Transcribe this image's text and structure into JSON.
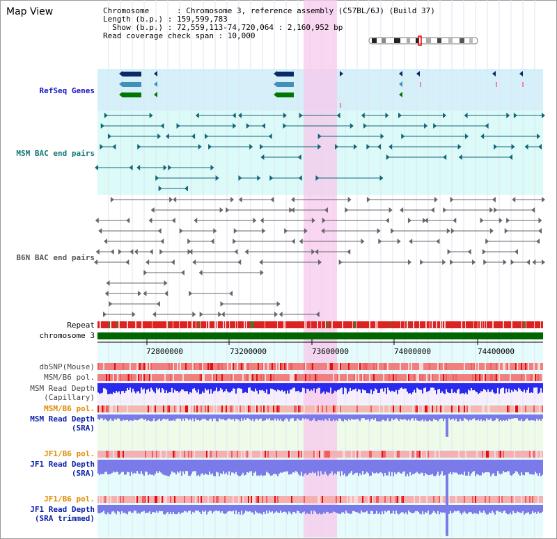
{
  "app": {
    "title": "Map View"
  },
  "info": {
    "chromosome": "Chromosome      : Chromosome 3, reference assembly (C57BL/6J) (Build 37)",
    "length": "Length (b.p.) : 159,599,783",
    "show": "  Show (b.p.) : 72,559,113-74,720,064 : 2,160,952 bp",
    "coverage": "Read coverage check span : 10,000"
  },
  "tracks": {
    "refseq": "RefSeq Genes",
    "msm_bac": "MSM BAC end pairs",
    "b6n_bac": "B6N BAC end pairs",
    "repeat": "Repeat",
    "chromosome": "chromosome 3",
    "dbsnp": "dbSNP(Mouse)",
    "msm_b6_pol_1": "MSM/B6 pol.",
    "msm_depth_cap": "MSM Read Depth\n(Capillary)",
    "msm_b6_pol_2": "MSM/B6 pol.",
    "msm_depth_sra": "MSM Read Depth\n(SRA)",
    "jf1_b6_pol_1": "JF1/B6 pol.",
    "jf1_depth_sra": "JF1 Read Depth\n(SRA)",
    "jf1_b6_pol_2": "JF1/B6 pol.",
    "jf1_depth_trim": "JF1 Read Depth\n(SRA trimmed)"
  },
  "axis": {
    "ticks": [
      "72800000",
      "73200000",
      "73600000",
      "74000000",
      "74400000"
    ]
  },
  "colors": {
    "refseq_bg": "#d6f0fa",
    "msm_bg": "#dcfaf8",
    "highlight": "#f8d4f0",
    "chromosome": "#006600",
    "repeat_red": "#dd2222",
    "gene_navy": "#0a2a66",
    "gene_teal": "#4090b8",
    "gene_green": "#007700",
    "msm_line": "#116677",
    "b6n_line": "#666666",
    "depth_blue": "#2a2aee",
    "depth_sra": "#7a7ae8"
  }
}
